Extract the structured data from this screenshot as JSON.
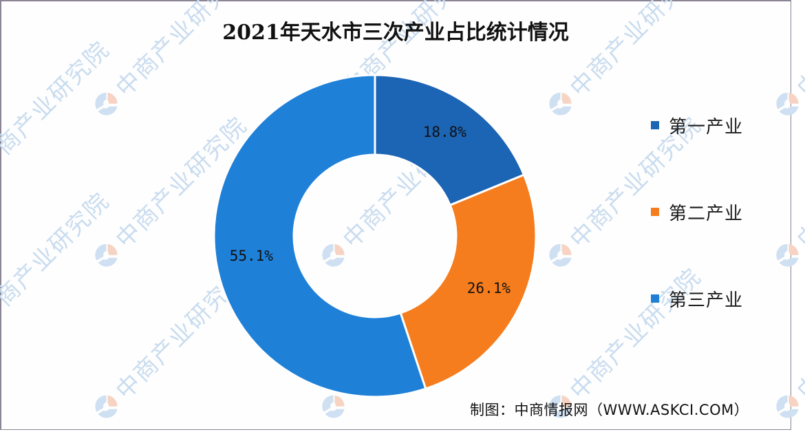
{
  "title": "2021年天水市三次产业占比统计情况",
  "source": "制图：中商情报网（WWW.ASKCI.COM）",
  "watermark": {
    "text": "中商产业研究院",
    "icon": "askci-logo-icon"
  },
  "legend": {
    "position": "right",
    "items": [
      {
        "label": "第一产业",
        "color": "#1c64b4"
      },
      {
        "label": "第二产业",
        "color": "#f57d1e"
      },
      {
        "label": "第三产业",
        "color": "#1f80d8"
      }
    ]
  },
  "slices": [
    {
      "label": "第一产业",
      "value_text": "18.8%",
      "color": "#1c64b4"
    },
    {
      "label": "第二产业",
      "value_text": "26.1%",
      "color": "#f57d1e"
    },
    {
      "label": "第三产业",
      "value_text": "55.1%",
      "color": "#1f80d8"
    }
  ],
  "chart_data": {
    "type": "pie",
    "subtype": "donut",
    "title": "2021年天水市三次产业占比统计情况",
    "categories": [
      "第一产业",
      "第二产业",
      "第三产业"
    ],
    "values": [
      18.8,
      26.1,
      55.1
    ],
    "unit": "%",
    "colors": [
      "#1c64b4",
      "#f57d1e",
      "#1f80d8"
    ],
    "start_angle": "12 o'clock",
    "direction": "clockwise",
    "legend_position": "right",
    "data_labels": [
      "18.8%",
      "26.1%",
      "55.1%"
    ],
    "annotations": [
      "制图：中商情报网（WWW.ASKCI.COM）"
    ]
  }
}
